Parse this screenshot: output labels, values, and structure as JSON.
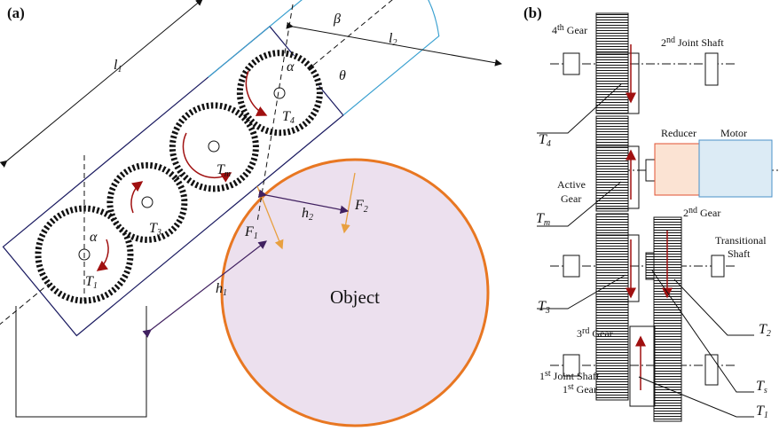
{
  "panel_a": {
    "label": "(a)",
    "l1": {
      "base": "l",
      "sub": "1"
    },
    "l2": {
      "base": "l",
      "sub": "2"
    },
    "beta": "β",
    "theta": "θ",
    "alpha_top": "α",
    "alpha_bottom": "α",
    "T4": {
      "base": "T",
      "sub": "4"
    },
    "Tm": {
      "base": "T",
      "sub": "m"
    },
    "T3": {
      "base": "T",
      "sub": "3"
    },
    "T1": {
      "base": "T",
      "sub": "1"
    },
    "h1": {
      "base": "h",
      "sub": "1"
    },
    "h2": {
      "base": "h",
      "sub": "2"
    },
    "F1": {
      "base": "F",
      "sub": "1"
    },
    "F2": {
      "base": "F",
      "sub": "2"
    },
    "object": "Object"
  },
  "panel_b": {
    "label": "(b)",
    "gear4": {
      "num": "4",
      "sup": "th",
      "rest": " Gear"
    },
    "joint2": {
      "num": "2",
      "sup": "nd",
      "rest": " Joint Shaft"
    },
    "T4": {
      "base": "T",
      "sub": "4"
    },
    "reducer": "Reducer",
    "motor": "Motor",
    "active": [
      "Active",
      "Gear"
    ],
    "gear2": {
      "num": "2",
      "sup": "nd",
      "rest": " Gear"
    },
    "Tm": {
      "base": "T",
      "sub": "m"
    },
    "transitional": [
      "Transitional",
      "Shaft"
    ],
    "T3": {
      "base": "T",
      "sub": "3"
    },
    "gear3": {
      "num": "3",
      "sup": "rd",
      "rest": " Gear"
    },
    "T2": {
      "base": "T",
      "sub": "2"
    },
    "Ts": {
      "base": "T",
      "sub": "s"
    },
    "joint1": {
      "num": "1",
      "sup": "st",
      "rest": " Joint Shaft"
    },
    "gear1": {
      "num": "1",
      "sup": "st",
      "rest": " Gear"
    },
    "T1": {
      "base": "T",
      "sub": "1"
    }
  }
}
